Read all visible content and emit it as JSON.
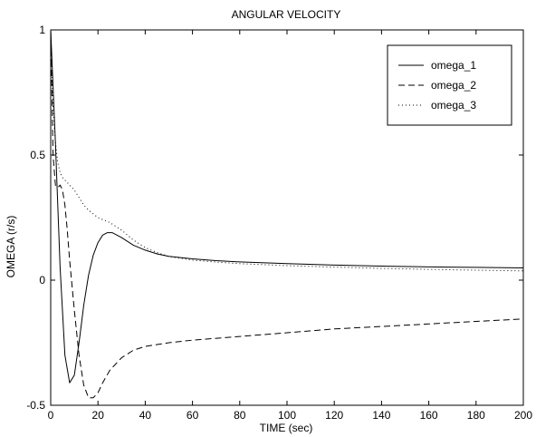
{
  "chart_data": {
    "type": "line",
    "title": "ANGULAR VELOCITY",
    "xlabel": "TIME (sec)",
    "ylabel": "OMEGA (r/s)",
    "xlim": [
      0,
      200
    ],
    "ylim": [
      -0.5,
      1
    ],
    "xticks": [
      0,
      20,
      40,
      60,
      80,
      100,
      120,
      140,
      160,
      180,
      200
    ],
    "yticks": [
      -0.5,
      0,
      0.5,
      1
    ],
    "ytick_labels": [
      "-0.5",
      "0",
      "0.5",
      "1"
    ],
    "grid": false,
    "legend_position": "top-right",
    "series": [
      {
        "name": "omega_1",
        "style": "solid",
        "x": [
          0,
          2,
          4,
          6,
          8,
          10,
          12,
          14,
          16,
          18,
          20,
          22,
          24,
          26,
          28,
          30,
          35,
          40,
          45,
          50,
          60,
          70,
          80,
          100,
          120,
          140,
          160,
          180,
          200
        ],
        "y": [
          1.0,
          0.55,
          0.05,
          -0.3,
          -0.41,
          -0.38,
          -0.25,
          -0.1,
          0.02,
          0.1,
          0.15,
          0.18,
          0.19,
          0.19,
          0.18,
          0.17,
          0.14,
          0.12,
          0.105,
          0.095,
          0.085,
          0.078,
          0.073,
          0.066,
          0.06,
          0.056,
          0.053,
          0.051,
          0.049
        ]
      },
      {
        "name": "omega_2",
        "style": "dashed",
        "x": [
          0,
          1,
          2,
          3,
          4,
          5,
          6,
          7,
          8,
          10,
          12,
          14,
          16,
          18,
          20,
          22,
          25,
          30,
          35,
          40,
          50,
          60,
          80,
          100,
          120,
          140,
          160,
          180,
          200
        ],
        "y": [
          1.0,
          0.5,
          0.38,
          0.37,
          0.38,
          0.36,
          0.3,
          0.2,
          0.08,
          -0.12,
          -0.3,
          -0.42,
          -0.47,
          -0.47,
          -0.45,
          -0.41,
          -0.36,
          -0.31,
          -0.28,
          -0.265,
          -0.25,
          -0.24,
          -0.225,
          -0.21,
          -0.195,
          -0.185,
          -0.175,
          -0.165,
          -0.155
        ]
      },
      {
        "name": "omega_3",
        "style": "dotted",
        "x": [
          0,
          1,
          2,
          3,
          4,
          5,
          6,
          8,
          10,
          12,
          14,
          16,
          18,
          20,
          25,
          30,
          35,
          40,
          45,
          50,
          60,
          70,
          80,
          100,
          120,
          140,
          160,
          180,
          200
        ],
        "y": [
          1.0,
          0.7,
          0.55,
          0.47,
          0.43,
          0.41,
          0.4,
          0.38,
          0.36,
          0.33,
          0.3,
          0.28,
          0.265,
          0.25,
          0.23,
          0.2,
          0.16,
          0.13,
          0.11,
          0.095,
          0.08,
          0.072,
          0.066,
          0.058,
          0.052,
          0.047,
          0.043,
          0.04,
          0.037
        ]
      }
    ]
  }
}
